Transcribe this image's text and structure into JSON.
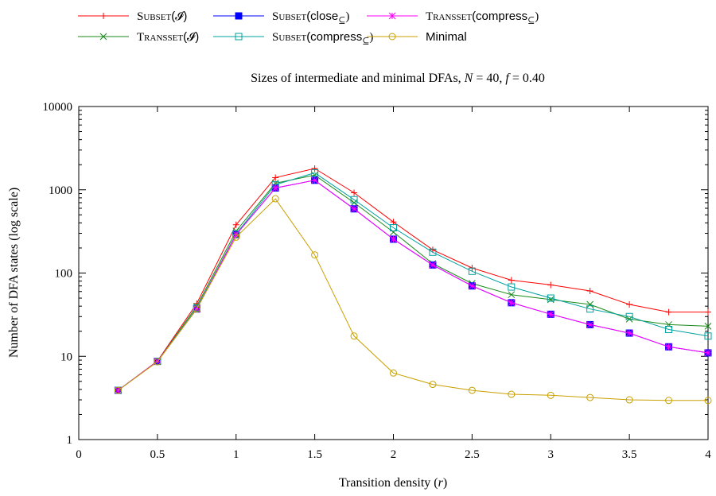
{
  "chart_data": {
    "type": "line",
    "title": "Sizes of intermediate and minimal DFAs, N = 40, f = 0.40",
    "title_parts": {
      "prefix": "Sizes of intermediate and minimal DFAs,",
      "n_var": "N",
      "n_eq": "= 40,",
      "f_var": "f",
      "f_eq": "= 0.40"
    },
    "xlabel": "Transition density (r)",
    "xlabel_parts": {
      "text": "Transition density (",
      "var": "r",
      "close": ")"
    },
    "ylabel": "Number of DFA states (log scale)",
    "xlim": [
      0,
      4
    ],
    "ylim": [
      1,
      10000
    ],
    "yscale": "log",
    "grid": false,
    "legend_position": "top",
    "x_ticks": [
      "0",
      "0.5",
      "1",
      "1.5",
      "2",
      "2.5",
      "3",
      "3.5",
      "4"
    ],
    "y_ticks": [
      "1",
      "10",
      "100",
      "1000",
      "10000"
    ],
    "x": [
      0.25,
      0.5,
      0.75,
      1.0,
      1.25,
      1.5,
      1.75,
      2.0,
      2.25,
      2.5,
      2.75,
      3.0,
      3.25,
      3.5,
      3.75,
      4.0
    ],
    "series": [
      {
        "name": "SUBSET(I)",
        "label_main": "Subset",
        "label_arg": "(𝓘)",
        "color": "#ff0000",
        "marker": "plus",
        "values": [
          3.9,
          8.8,
          43,
          380,
          1400,
          1800,
          920,
          410,
          190,
          115,
          82,
          72,
          61,
          42,
          34,
          34
        ]
      },
      {
        "name": "TRANSSET(I)",
        "label_main": "Transset",
        "label_arg": "(𝓘)",
        "color": "#1a8a1a",
        "marker": "cross",
        "values": [
          3.9,
          8.7,
          40,
          320,
          1200,
          1500,
          700,
          310,
          130,
          75,
          55,
          48,
          42,
          28,
          24,
          23
        ]
      },
      {
        "name": "SUBSET(close⊆)",
        "label_main": "Subset",
        "label_arg": "(close",
        "label_sub": "⊆",
        "color": "#0000ff",
        "marker": "filled-square",
        "values": [
          3.9,
          8.7,
          37,
          290,
          1050,
          1300,
          590,
          255,
          125,
          70,
          44,
          32,
          24,
          19,
          13,
          11
        ]
      },
      {
        "name": "SUBSET(compress⊆)",
        "label_main": "Subset",
        "label_arg": "(compress",
        "label_sub": "⊆",
        "color": "#00a0a0",
        "marker": "open-square",
        "values": [
          3.9,
          8.7,
          38,
          295,
          1150,
          1600,
          760,
          350,
          178,
          105,
          68,
          50,
          37,
          30,
          21,
          17.5
        ]
      },
      {
        "name": "TRANSSET(compress⊆)",
        "label_main": "Transset",
        "label_arg": "(compress",
        "label_sub": "⊆",
        "color": "#ff00ff",
        "marker": "asterisk",
        "values": [
          3.9,
          8.7,
          37,
          290,
          1050,
          1300,
          590,
          255,
          125,
          70,
          44,
          32,
          24,
          19,
          13,
          11
        ]
      },
      {
        "name": "Minimal",
        "label_main": "Minimal",
        "label_arg": "",
        "color": "#c8a000",
        "marker": "open-circle",
        "values": [
          3.9,
          8.6,
          37,
          270,
          780,
          165,
          17.5,
          6.3,
          4.6,
          3.9,
          3.5,
          3.4,
          3.2,
          3.0,
          2.95,
          2.95
        ]
      }
    ]
  }
}
